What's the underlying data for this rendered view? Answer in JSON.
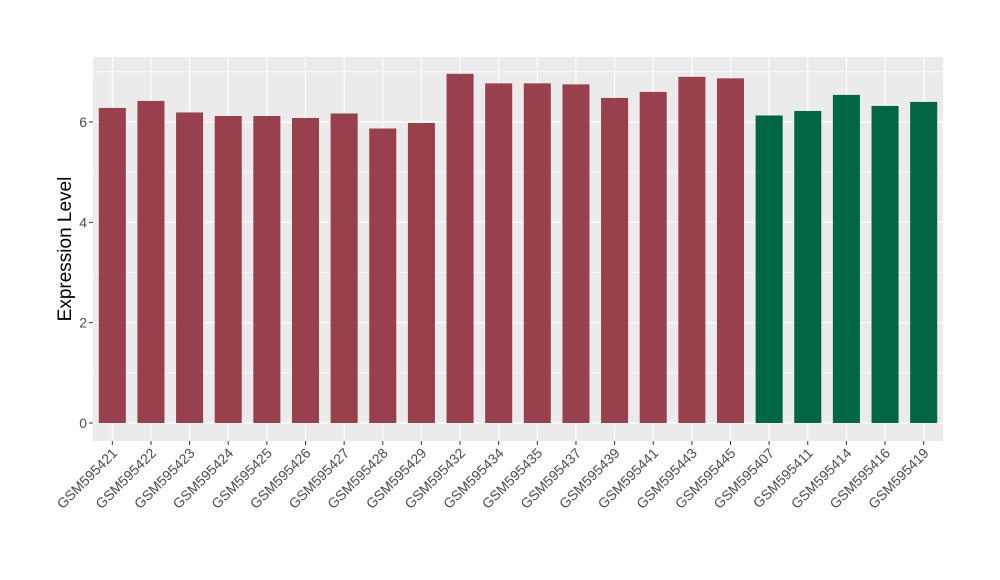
{
  "chart_data": {
    "type": "bar",
    "title": "",
    "xlabel": "",
    "ylabel": "Expression Level",
    "ylim": [
      0,
      7.2
    ],
    "yticks": [
      0,
      2,
      4,
      6
    ],
    "grid": true,
    "legend": "none",
    "colors": {
      "group_a": "#99404f",
      "group_b": "#006644",
      "panel": "#ebebeb",
      "grid": "#ffffff"
    },
    "categories": [
      "GSM595421",
      "GSM595422",
      "GSM595423",
      "GSM595424",
      "GSM595425",
      "GSM595426",
      "GSM595427",
      "GSM595428",
      "GSM595429",
      "GSM595432",
      "GSM595434",
      "GSM595435",
      "GSM595437",
      "GSM595439",
      "GSM595441",
      "GSM595443",
      "GSM595445",
      "GSM595407",
      "GSM595411",
      "GSM595414",
      "GSM595416",
      "GSM595419"
    ],
    "values": [
      6.28,
      6.42,
      6.19,
      6.12,
      6.12,
      6.08,
      6.17,
      5.87,
      5.98,
      6.96,
      6.77,
      6.77,
      6.75,
      6.48,
      6.6,
      6.9,
      6.87,
      6.13,
      6.22,
      6.54,
      6.32,
      6.4
    ],
    "groups": [
      "a",
      "a",
      "a",
      "a",
      "a",
      "a",
      "a",
      "a",
      "a",
      "a",
      "a",
      "a",
      "a",
      "a",
      "a",
      "a",
      "a",
      "b",
      "b",
      "b",
      "b",
      "b"
    ]
  }
}
